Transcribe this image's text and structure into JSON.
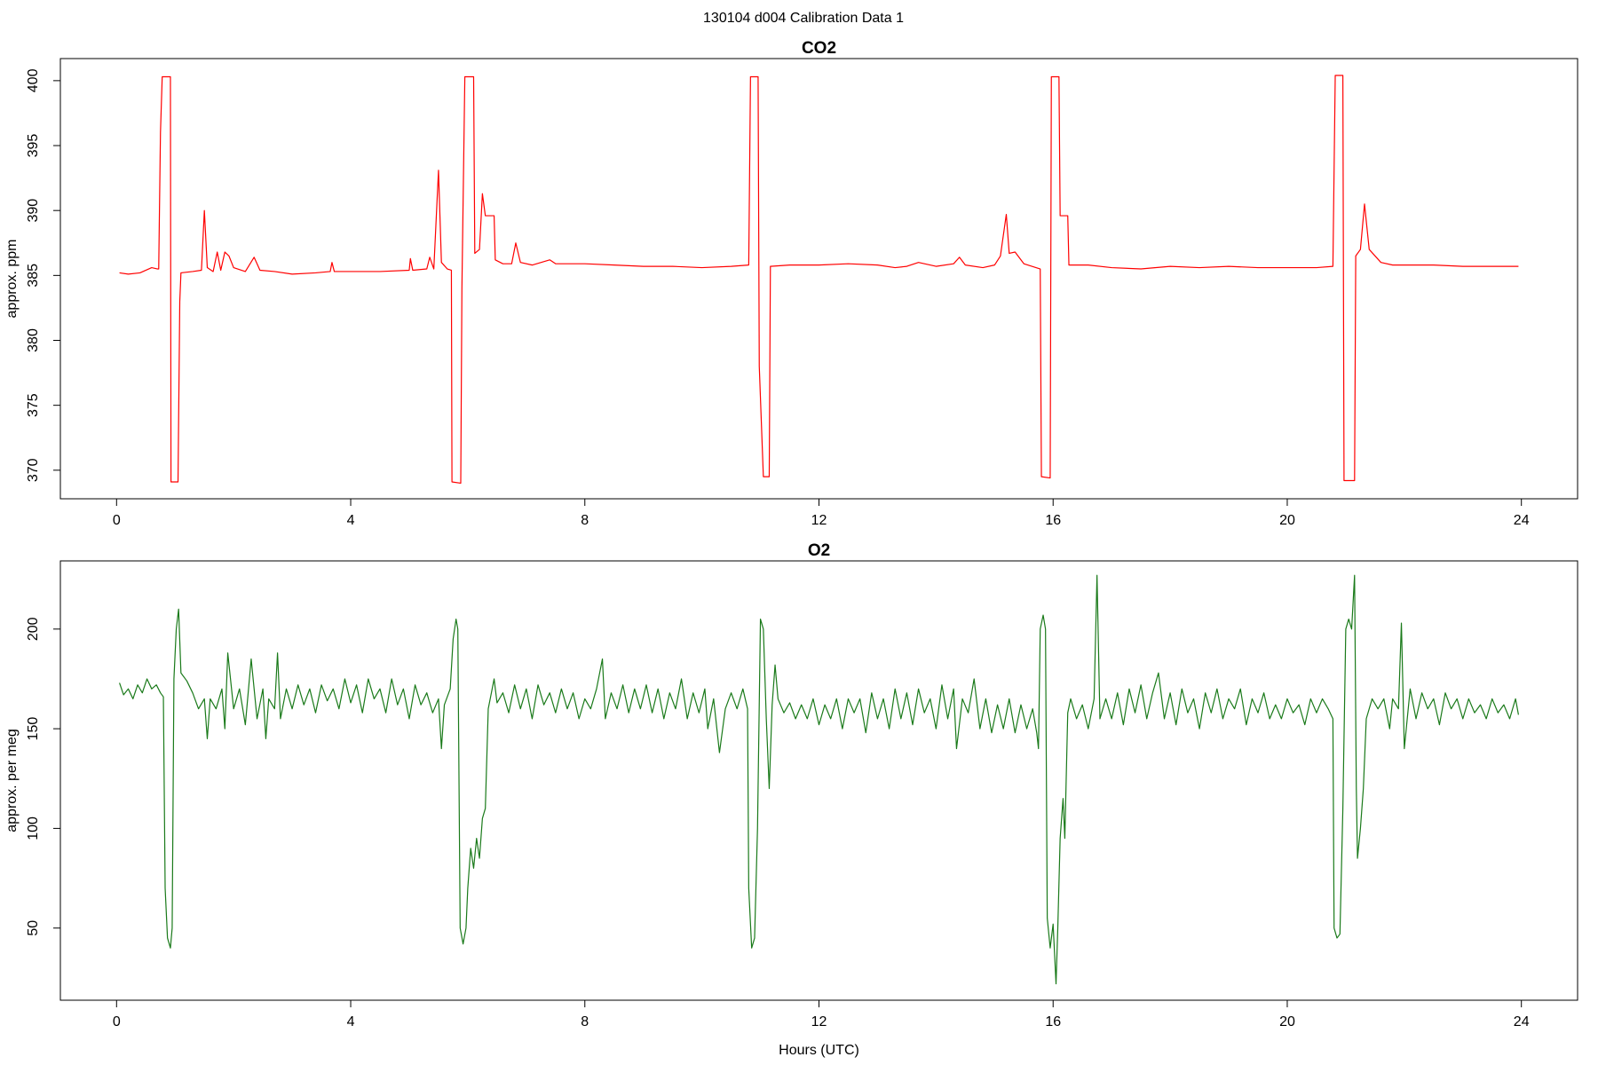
{
  "title": "130104   d004   Calibration Data 1",
  "chart_data": [
    {
      "type": "line",
      "title": "CO2",
      "ylabel": "approx. ppm",
      "xlim": [
        -0.96,
        24.96
      ],
      "xticks": [
        0,
        4,
        8,
        12,
        16,
        20,
        24
      ],
      "ylim": [
        367.8,
        401.7
      ],
      "yticks": [
        370,
        375,
        380,
        385,
        390,
        395,
        400
      ],
      "x": [
        0.05,
        0.2,
        0.4,
        0.6,
        0.7,
        0.72,
        0.75,
        0.78,
        0.92,
        0.93,
        1.05,
        1.08,
        1.1,
        1.3,
        1.45,
        1.5,
        1.55,
        1.65,
        1.72,
        1.78,
        1.85,
        1.92,
        2.0,
        2.2,
        2.35,
        2.45,
        2.7,
        3.0,
        3.4,
        3.65,
        3.68,
        3.72,
        4.0,
        4.5,
        5.0,
        5.02,
        5.06,
        5.3,
        5.35,
        5.42,
        5.5,
        5.55,
        5.65,
        5.72,
        5.73,
        5.88,
        5.9,
        5.95,
        6.1,
        6.12,
        6.2,
        6.25,
        6.3,
        6.45,
        6.47,
        6.6,
        6.75,
        6.82,
        6.9,
        7.1,
        7.4,
        7.5,
        8.0,
        8.5,
        9.0,
        9.5,
        10.0,
        10.5,
        10.8,
        10.83,
        10.96,
        10.98,
        11.05,
        11.15,
        11.17,
        11.5,
        12.0,
        12.5,
        13.0,
        13.3,
        13.5,
        13.7,
        14.0,
        14.3,
        14.4,
        14.5,
        14.8,
        15.0,
        15.1,
        15.2,
        15.25,
        15.35,
        15.5,
        15.78,
        15.8,
        15.95,
        15.97,
        16.1,
        16.12,
        16.25,
        16.27,
        16.6,
        17.0,
        17.5,
        18.0,
        18.5,
        19.0,
        19.5,
        20.0,
        20.5,
        20.78,
        20.82,
        20.95,
        20.97,
        21.15,
        21.17,
        21.25,
        21.32,
        21.4,
        21.6,
        21.8,
        22.0,
        22.5,
        23.0,
        23.5,
        23.95
      ],
      "series": [
        {
          "color": "#ff0000",
          "values": [
            385.2,
            385.1,
            385.2,
            385.6,
            385.5,
            385.5,
            396,
            400.3,
            400.3,
            369.1,
            369.1,
            383,
            385.2,
            385.3,
            385.4,
            390,
            385.6,
            385.3,
            386.8,
            385.4,
            386.8,
            386.5,
            385.6,
            385.3,
            386.4,
            385.4,
            385.3,
            385.1,
            385.2,
            385.3,
            386.0,
            385.3,
            385.3,
            385.3,
            385.4,
            386.3,
            385.4,
            385.5,
            386.4,
            385.5,
            393.1,
            386,
            385.5,
            385.4,
            369.1,
            369,
            384,
            400.3,
            400.3,
            386.7,
            387,
            391.3,
            389.6,
            389.6,
            386.2,
            385.9,
            385.9,
            387.5,
            386,
            385.8,
            386.2,
            385.9,
            385.9,
            385.8,
            385.7,
            385.7,
            385.6,
            385.7,
            385.8,
            400.3,
            400.3,
            378,
            369.5,
            369.5,
            385.7,
            385.8,
            385.8,
            385.9,
            385.8,
            385.6,
            385.7,
            386.0,
            385.7,
            385.9,
            386.4,
            385.8,
            385.6,
            385.8,
            386.5,
            389.7,
            386.7,
            386.8,
            385.9,
            385.5,
            369.5,
            369.4,
            400.3,
            400.3,
            389.6,
            389.6,
            385.8,
            385.8,
            385.6,
            385.5,
            385.7,
            385.6,
            385.7,
            385.6,
            385.6,
            385.6,
            385.7,
            400.4,
            400.4,
            369.2,
            369.2,
            386.5,
            387,
            390.5,
            387,
            386,
            385.8,
            385.8,
            385.8,
            385.7,
            385.7,
            385.7
          ]
        }
      ]
    },
    {
      "type": "line",
      "title": "O2",
      "ylabel": "approx. per meg",
      "xlabel": "Hours (UTC)",
      "xlim": [
        -0.96,
        24.96
      ],
      "xticks": [
        0,
        4,
        8,
        12,
        16,
        20,
        24
      ],
      "ylim": [
        13.8,
        234.2
      ],
      "yticks": [
        50,
        100,
        150,
        200
      ],
      "x": [
        0.05,
        0.12,
        0.2,
        0.28,
        0.36,
        0.44,
        0.52,
        0.6,
        0.68,
        0.75,
        0.8,
        0.83,
        0.87,
        0.92,
        0.95,
        0.98,
        1.02,
        1.06,
        1.1,
        1.2,
        1.3,
        1.4,
        1.5,
        1.55,
        1.6,
        1.7,
        1.8,
        1.85,
        1.9,
        2.0,
        2.1,
        2.2,
        2.3,
        2.4,
        2.5,
        2.55,
        2.6,
        2.7,
        2.75,
        2.8,
        2.9,
        3.0,
        3.1,
        3.2,
        3.3,
        3.4,
        3.5,
        3.6,
        3.7,
        3.8,
        3.9,
        4.0,
        4.1,
        4.2,
        4.3,
        4.4,
        4.5,
        4.6,
        4.7,
        4.8,
        4.9,
        5.0,
        5.1,
        5.2,
        5.3,
        5.4,
        5.5,
        5.55,
        5.6,
        5.7,
        5.75,
        5.8,
        5.83,
        5.87,
        5.92,
        5.97,
        6.0,
        6.05,
        6.1,
        6.15,
        6.2,
        6.25,
        6.3,
        6.35,
        6.45,
        6.5,
        6.6,
        6.7,
        6.8,
        6.9,
        7.0,
        7.1,
        7.2,
        7.3,
        7.4,
        7.5,
        7.6,
        7.7,
        7.8,
        7.9,
        8.0,
        8.1,
        8.2,
        8.3,
        8.35,
        8.45,
        8.55,
        8.65,
        8.75,
        8.85,
        8.95,
        9.05,
        9.15,
        9.25,
        9.35,
        9.45,
        9.55,
        9.65,
        9.75,
        9.85,
        9.95,
        10.05,
        10.1,
        10.2,
        10.3,
        10.4,
        10.5,
        10.6,
        10.7,
        10.78,
        10.8,
        10.85,
        10.9,
        10.95,
        11.0,
        11.05,
        11.1,
        11.15,
        11.2,
        11.25,
        11.3,
        11.4,
        11.5,
        11.6,
        11.7,
        11.8,
        11.9,
        12.0,
        12.1,
        12.2,
        12.3,
        12.4,
        12.5,
        12.6,
        12.7,
        12.8,
        12.9,
        13.0,
        13.1,
        13.2,
        13.3,
        13.4,
        13.5,
        13.6,
        13.7,
        13.8,
        13.9,
        14.0,
        14.1,
        14.2,
        14.3,
        14.35,
        14.45,
        14.55,
        14.65,
        14.75,
        14.85,
        14.95,
        15.05,
        15.15,
        15.25,
        15.35,
        15.45,
        15.55,
        15.65,
        15.72,
        15.75,
        15.78,
        15.83,
        15.87,
        15.9,
        15.95,
        16.0,
        16.05,
        16.08,
        16.12,
        16.17,
        16.2,
        16.25,
        16.3,
        16.4,
        16.5,
        16.6,
        16.7,
        16.75,
        16.8,
        16.9,
        17.0,
        17.1,
        17.2,
        17.3,
        17.4,
        17.5,
        17.6,
        17.7,
        17.8,
        17.9,
        18.0,
        18.1,
        18.2,
        18.3,
        18.4,
        18.5,
        18.6,
        18.7,
        18.8,
        18.9,
        19.0,
        19.1,
        19.2,
        19.3,
        19.4,
        19.5,
        19.6,
        19.7,
        19.8,
        19.9,
        20.0,
        20.1,
        20.2,
        20.3,
        20.4,
        20.5,
        20.6,
        20.7,
        20.78,
        20.8,
        20.85,
        20.9,
        20.95,
        21.0,
        21.05,
        21.1,
        21.15,
        21.18,
        21.2,
        21.25,
        21.3,
        21.35,
        21.45,
        21.55,
        21.65,
        21.75,
        21.8,
        21.9,
        21.95,
        22.0,
        22.1,
        22.2,
        22.3,
        22.4,
        22.5,
        22.6,
        22.7,
        22.8,
        22.9,
        23.0,
        23.1,
        23.2,
        23.3,
        23.4,
        23.5,
        23.6,
        23.7,
        23.8,
        23.9,
        23.95
      ],
      "series": [
        {
          "color": "#1a7a1a",
          "values": [
            173,
            167,
            170,
            165,
            172,
            168,
            175,
            170,
            172,
            168,
            166,
            70,
            45,
            40,
            50,
            175,
            200,
            210,
            178,
            174,
            168,
            160,
            165,
            145,
            165,
            160,
            170,
            150,
            188,
            160,
            170,
            152,
            185,
            155,
            170,
            145,
            165,
            160,
            188,
            155,
            170,
            160,
            172,
            162,
            170,
            158,
            172,
            164,
            170,
            160,
            175,
            163,
            172,
            158,
            175,
            165,
            170,
            158,
            175,
            162,
            170,
            155,
            172,
            162,
            168,
            158,
            165,
            140,
            162,
            170,
            195,
            205,
            200,
            50,
            42,
            50,
            70,
            90,
            80,
            95,
            85,
            105,
            110,
            160,
            175,
            163,
            168,
            158,
            172,
            160,
            170,
            155,
            172,
            162,
            168,
            158,
            170,
            160,
            168,
            155,
            165,
            160,
            170,
            185,
            155,
            168,
            160,
            172,
            158,
            170,
            160,
            172,
            158,
            170,
            155,
            168,
            160,
            175,
            155,
            168,
            158,
            170,
            150,
            165,
            138,
            160,
            168,
            160,
            170,
            160,
            70,
            40,
            45,
            100,
            205,
            200,
            155,
            120,
            162,
            182,
            165,
            158,
            163,
            155,
            162,
            155,
            165,
            152,
            162,
            155,
            165,
            150,
            165,
            158,
            165,
            148,
            168,
            155,
            165,
            150,
            170,
            155,
            168,
            152,
            170,
            158,
            165,
            150,
            172,
            155,
            170,
            140,
            165,
            158,
            175,
            150,
            165,
            148,
            162,
            150,
            165,
            148,
            162,
            150,
            160,
            148,
            140,
            200,
            207,
            200,
            55,
            40,
            52,
            22,
            50,
            95,
            115,
            95,
            158,
            165,
            155,
            162,
            150,
            165,
            227,
            155,
            165,
            155,
            168,
            152,
            170,
            158,
            172,
            155,
            168,
            178,
            155,
            168,
            152,
            170,
            158,
            165,
            150,
            168,
            158,
            170,
            155,
            165,
            160,
            170,
            152,
            165,
            158,
            168,
            155,
            162,
            155,
            165,
            158,
            162,
            152,
            165,
            158,
            165,
            160,
            155,
            50,
            45,
            47,
            110,
            200,
            205,
            200,
            227,
            120,
            85,
            100,
            120,
            155,
            165,
            160,
            165,
            150,
            165,
            160,
            203,
            140,
            170,
            155,
            168,
            160,
            165,
            152,
            168,
            160,
            165,
            155,
            165,
            158,
            162,
            155,
            165,
            158,
            162,
            155,
            165,
            157
          ]
        }
      ]
    }
  ]
}
